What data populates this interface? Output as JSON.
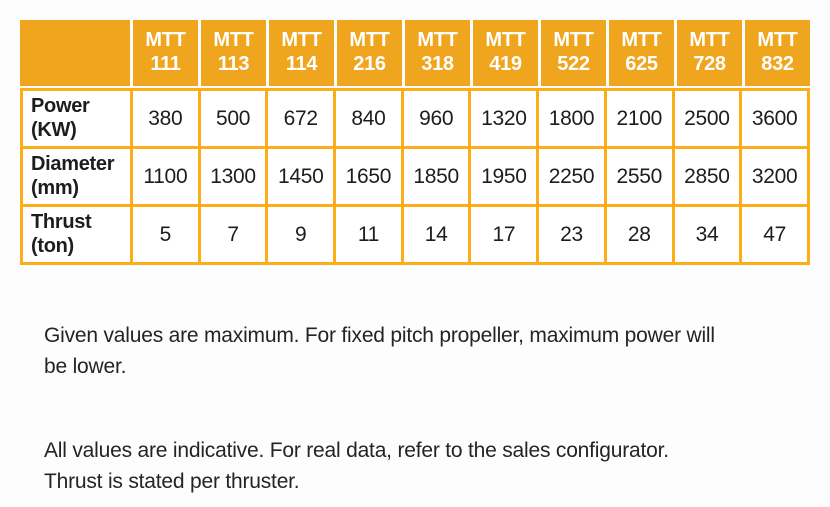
{
  "colors": {
    "header_fill": "#F0A51F",
    "grid_line": "#FBAE17",
    "header_text": "#FFFFFF",
    "body_text": "#1D1D1D"
  },
  "table": {
    "columns": [
      {
        "line1": "MTT",
        "line2": "111"
      },
      {
        "line1": "MTT",
        "line2": "113"
      },
      {
        "line1": "MTT",
        "line2": "114"
      },
      {
        "line1": "MTT",
        "line2": "216"
      },
      {
        "line1": "MTT",
        "line2": "318"
      },
      {
        "line1": "MTT",
        "line2": "419"
      },
      {
        "line1": "MTT",
        "line2": "522"
      },
      {
        "line1": "MTT",
        "line2": "625"
      },
      {
        "line1": "MTT",
        "line2": "728"
      },
      {
        "line1": "MTT",
        "line2": "832"
      }
    ],
    "rows": [
      {
        "label": {
          "line1": "Power",
          "line2": "(KW)"
        },
        "values": [
          "380",
          "500",
          "672",
          "840",
          "960",
          "1320",
          "1800",
          "2100",
          "2500",
          "3600"
        ]
      },
      {
        "label": {
          "line1": "Diameter",
          "line2": "(mm)"
        },
        "values": [
          "1100",
          "1300",
          "1450",
          "1650",
          "1850",
          "1950",
          "2250",
          "2550",
          "2850",
          "3200"
        ]
      },
      {
        "label": {
          "line1": "Thrust",
          "line2": "(ton)"
        },
        "values": [
          "5",
          "7",
          "9",
          "11",
          "14",
          "17",
          "23",
          "28",
          "34",
          "47"
        ]
      }
    ]
  },
  "notes": [
    {
      "lines": [
        "Given values are maximum. For fixed pitch propeller, maximum power will",
        "be lower."
      ]
    },
    {
      "lines": [
        "All values are indicative. For real data, refer to the sales configurator.",
        "Thrust is stated per thruster."
      ]
    }
  ]
}
